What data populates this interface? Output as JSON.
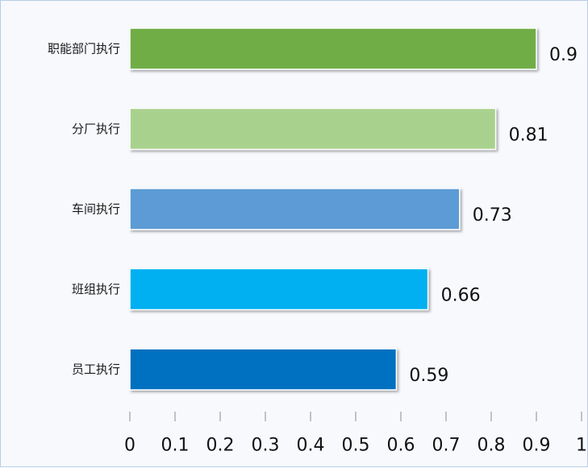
{
  "chart_data": {
    "type": "bar",
    "orientation": "horizontal",
    "categories": [
      "职能部门执行",
      "分厂执行",
      "车间执行",
      "班组执行",
      "员工执行"
    ],
    "values": [
      0.9,
      0.81,
      0.73,
      0.66,
      0.59
    ],
    "value_labels": [
      "0.9",
      "0.81",
      "0.73",
      "0.66",
      "0.59"
    ],
    "bar_colors": [
      "#70ad47",
      "#a9d18e",
      "#5b9bd5",
      "#00b0f0",
      "#0070c0"
    ],
    "xlim": [
      0,
      1
    ],
    "x_ticks": [
      "0",
      "0.1",
      "0.2",
      "0.3",
      "0.4",
      "0.5",
      "0.6",
      "0.7",
      "0.8",
      "0.9",
      "1"
    ],
    "title": "",
    "xlabel": "",
    "ylabel": "",
    "grid": false,
    "legend": "none"
  }
}
